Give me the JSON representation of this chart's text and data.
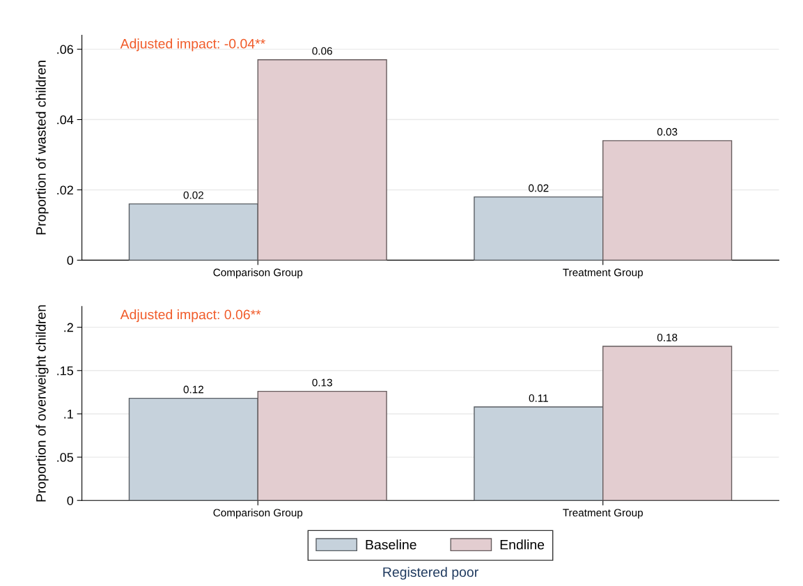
{
  "chart_data": [
    {
      "type": "bar",
      "ylabel": "Proportion of wasted children",
      "categories": [
        "Comparison Group",
        "Treatment Group"
      ],
      "series": [
        {
          "color": "#c6d2dc",
          "values": [
            0.016,
            0.018
          ],
          "value_labels": [
            "0.02",
            "0.02"
          ]
        },
        {
          "color": "#e3cdd0",
          "values": [
            0.057,
            0.034
          ],
          "value_labels": [
            "0.06",
            "0.03"
          ]
        }
      ],
      "ylim": [
        0,
        0.064
      ],
      "yticks": [
        0,
        {
          "value": 0.02,
          "label": ".02"
        },
        {
          "value": 0.04,
          "label": ".04"
        },
        {
          "value": 0.06,
          "label": ".06"
        }
      ],
      "grid": "y",
      "annotations": [
        "Adjusted impact: -0.04**"
      ]
    },
    {
      "type": "bar",
      "ylabel": "Proportion of overweight children",
      "xlabel": "Registered poor",
      "categories": [
        "Comparison Group",
        "Treatment Group"
      ],
      "series": [
        {
          "name": "Baseline",
          "color": "#c6d2dc",
          "values": [
            0.118,
            0.108
          ],
          "value_labels": [
            "0.12",
            "0.11"
          ]
        },
        {
          "name": "Endline",
          "color": "#e3cdd0",
          "values": [
            0.126,
            0.178
          ],
          "value_labels": [
            "0.13",
            "0.18"
          ]
        }
      ],
      "ylim": [
        0,
        0.224
      ],
      "yticks": [
        0,
        {
          "value": 0.05,
          "label": ".05"
        },
        {
          "value": 0.1,
          "label": ".1"
        },
        {
          "value": 0.15,
          "label": ".15"
        },
        {
          "value": 0.2,
          "label": ".2"
        }
      ],
      "grid": "y",
      "legend": "bottom",
      "annotations": [
        "Adjusted impact: 0.06**"
      ]
    }
  ]
}
